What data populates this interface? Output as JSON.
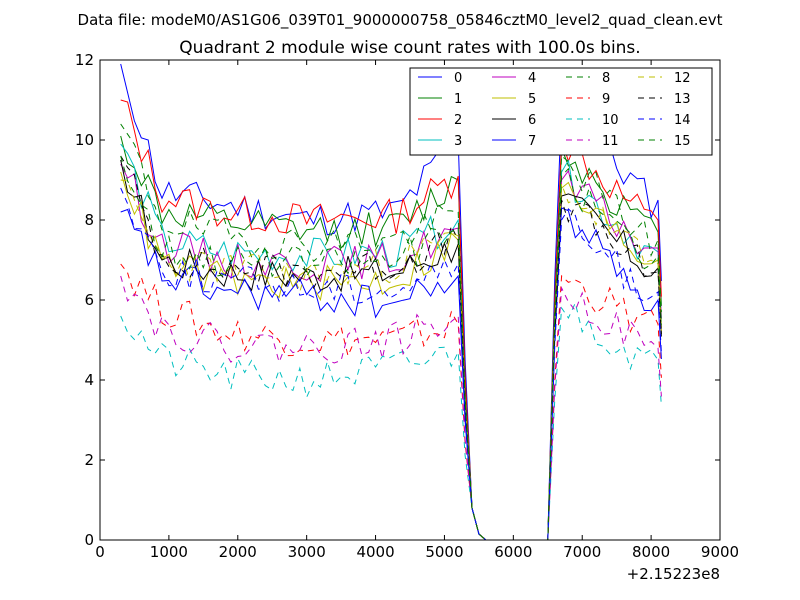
{
  "chart_data": {
    "type": "line",
    "suptitle": "Data file: modeM0/AS1G06_039T01_9000000758_05846cztM0_level2_quad_clean.evt",
    "title": "Quadrant 2 module wise count rates with 100.0s bins.",
    "xlabel": "",
    "ylabel": "",
    "x_offset_label": "+2.15223e8",
    "xlim": [
      0,
      9000
    ],
    "ylim": [
      0,
      12
    ],
    "x_ticks": [
      0,
      1000,
      2000,
      3000,
      4000,
      5000,
      6000,
      7000,
      8000,
      9000
    ],
    "y_ticks": [
      0,
      2,
      4,
      6,
      8,
      10,
      12
    ],
    "x_tick_labels": [
      "0",
      "1000",
      "2000",
      "3000",
      "4000",
      "5000",
      "6000",
      "7000",
      "8000",
      "9000"
    ],
    "y_tick_labels": [
      "0",
      "2",
      "4",
      "6",
      "8",
      "10",
      "12"
    ],
    "legend_position": "top-right",
    "x_start": 300,
    "bin_width": 100,
    "gap_values": [
      0.8,
      0.15,
      0,
      0,
      0,
      0,
      0,
      0,
      0,
      0,
      0,
      0
    ],
    "series": [
      {
        "name": "0",
        "color": "#0000ff",
        "dash": "solid",
        "seed": 11,
        "profile": [
          11.9,
          8.7,
          8.4,
          8.0,
          8.2,
          10.0
        ],
        "recovery": 10.8,
        "end": 8.3
      },
      {
        "name": "1",
        "color": "#008000",
        "dash": "solid",
        "seed": 12,
        "profile": [
          10.1,
          8.2,
          7.9,
          7.7,
          7.8,
          9.0
        ],
        "recovery": 9.8,
        "end": 7.5
      },
      {
        "name": "2",
        "color": "#ff0000",
        "dash": "solid",
        "seed": 13,
        "profile": [
          11.0,
          8.6,
          8.2,
          8.0,
          8.1,
          9.1
        ],
        "recovery": 10.0,
        "end": 7.8
      },
      {
        "name": "3",
        "color": "#00bfbf",
        "dash": "solid",
        "seed": 14,
        "profile": [
          9.9,
          7.5,
          7.2,
          7.1,
          7.2,
          8.0
        ],
        "recovery": 9.2,
        "end": 7.0
      },
      {
        "name": "4",
        "color": "#bf00bf",
        "dash": "solid",
        "seed": 15,
        "profile": [
          9.4,
          7.4,
          7.0,
          6.9,
          7.0,
          7.8
        ],
        "recovery": 9.0,
        "end": 7.1
      },
      {
        "name": "5",
        "color": "#bfbf00",
        "dash": "solid",
        "seed": 16,
        "profile": [
          9.2,
          6.9,
          6.5,
          6.4,
          6.5,
          7.5
        ],
        "recovery": 8.8,
        "end": 6.8
      },
      {
        "name": "6",
        "color": "#000000",
        "dash": "solid",
        "seed": 17,
        "profile": [
          9.5,
          7.0,
          6.7,
          6.6,
          6.7,
          7.4
        ],
        "recovery": 8.6,
        "end": 6.6
      },
      {
        "name": "7",
        "color": "#0000ff",
        "dash": "solid",
        "seed": 18,
        "profile": [
          8.2,
          6.6,
          6.2,
          6.1,
          5.9,
          6.6
        ],
        "recovery": 8.3,
        "end": 5.8
      },
      {
        "name": "8",
        "color": "#008000",
        "dash": "dashed",
        "seed": 19,
        "profile": [
          10.4,
          8.0,
          7.6,
          7.4,
          7.5,
          8.2
        ],
        "recovery": 9.6,
        "end": 7.3
      },
      {
        "name": "9",
        "color": "#ff0000",
        "dash": "dashed",
        "seed": 20,
        "profile": [
          6.9,
          5.8,
          5.2,
          5.0,
          5.0,
          5.4
        ],
        "recovery": 6.6,
        "end": 5.2
      },
      {
        "name": "10",
        "color": "#00bfbf",
        "dash": "dashed",
        "seed": 21,
        "profile": [
          5.6,
          4.5,
          4.1,
          4.0,
          4.3,
          4.7
        ],
        "recovery": 5.8,
        "end": 4.3
      },
      {
        "name": "11",
        "color": "#bf00bf",
        "dash": "dashed",
        "seed": 22,
        "profile": [
          6.6,
          5.3,
          4.9,
          4.8,
          5.0,
          5.6
        ],
        "recovery": 6.3,
        "end": 4.6
      },
      {
        "name": "12",
        "color": "#bfbf00",
        "dash": "dashed",
        "seed": 23,
        "profile": [
          9.0,
          7.0,
          6.8,
          6.6,
          6.9,
          7.6
        ],
        "recovery": 8.9,
        "end": 6.7
      },
      {
        "name": "13",
        "color": "#000000",
        "dash": "dashed",
        "seed": 24,
        "profile": [
          9.6,
          7.1,
          6.8,
          6.7,
          6.9,
          7.5
        ],
        "recovery": 8.5,
        "end": 6.5
      },
      {
        "name": "14",
        "color": "#0000ff",
        "dash": "dashed",
        "seed": 25,
        "profile": [
          8.8,
          6.8,
          6.5,
          6.3,
          6.3,
          6.9
        ],
        "recovery": 8.0,
        "end": 6.0
      },
      {
        "name": "15",
        "color": "#008000",
        "dash": "dashed",
        "seed": 26,
        "profile": [
          9.6,
          7.3,
          7.0,
          6.9,
          7.0,
          7.8
        ],
        "recovery": 9.1,
        "end": 6.9
      }
    ]
  }
}
